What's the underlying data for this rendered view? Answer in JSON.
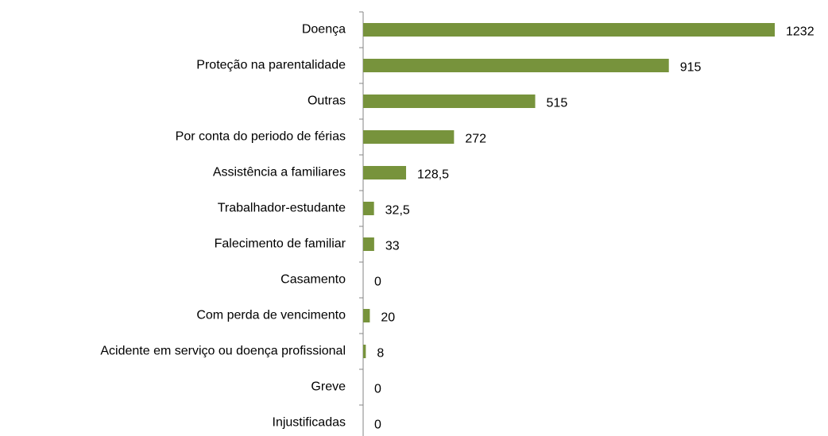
{
  "chart_data": {
    "type": "bar",
    "orientation": "horizontal",
    "categories": [
      "Doença",
      "Proteção na parentalidade",
      "Outras",
      "Por conta do periodo de férias",
      "Assistência a familiares",
      "Trabalhador-estudante",
      "Falecimento de familiar",
      "Casamento",
      "Com perda de vencimento",
      "Acidente em serviço ou doença profissional",
      "Greve",
      "Injustificadas"
    ],
    "values": [
      1232,
      915,
      515,
      272,
      128.5,
      32.5,
      33,
      0,
      20,
      8,
      0,
      0
    ],
    "value_labels": [
      "1232",
      "915",
      "515",
      "272",
      "128,5",
      "32,5",
      "33",
      "0",
      "20",
      "8",
      "0",
      "0"
    ],
    "color": "#77933c"
  }
}
